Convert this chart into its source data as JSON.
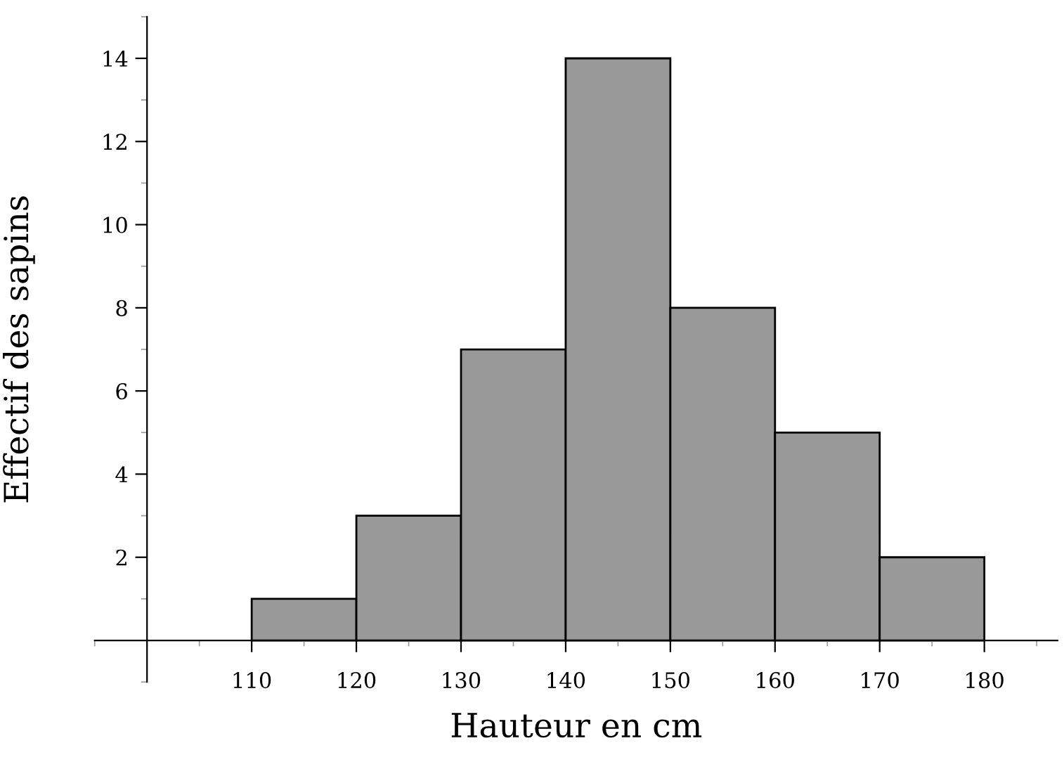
{
  "chart_data": {
    "type": "histogram",
    "xlabel": "Hauteur en cm",
    "ylabel": "Effectif des sapins",
    "bins": [
      110,
      120,
      130,
      140,
      150,
      160,
      170,
      180
    ],
    "values": [
      1,
      3,
      7,
      14,
      8,
      5,
      2
    ],
    "color": "#999999",
    "xlim": [
      95,
      187
    ],
    "ylim": [
      -1,
      15
    ],
    "xticks": [
      110,
      120,
      130,
      140,
      150,
      160,
      170,
      180
    ],
    "yticks": [
      2,
      4,
      6,
      8,
      10,
      12,
      14
    ],
    "grid": false
  }
}
